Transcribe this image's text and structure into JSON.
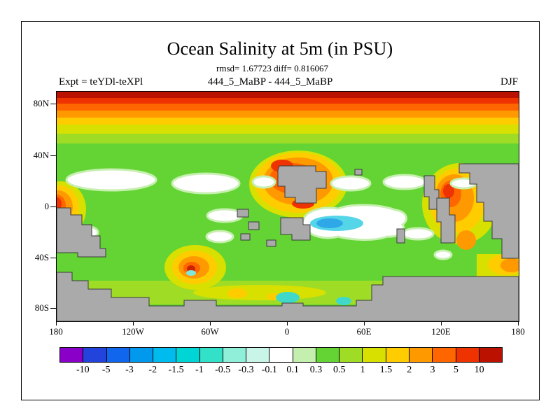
{
  "title": "Ocean Salinity at 5m (in PSU)",
  "stats_line": "rmsd= 1.67723 diff= 0.816067",
  "header": {
    "left": "Expt = teYDl-teXPl",
    "center": "444_5_MaBP - 444_5_MaBP",
    "right": "DJF"
  },
  "axes": {
    "y_ticks": [
      "80N",
      "40N",
      "0",
      "40S",
      "80S"
    ],
    "x_ticks": [
      "180",
      "120W",
      "60W",
      "0",
      "60E",
      "120E",
      "180"
    ]
  },
  "colorbar": {
    "labels": [
      "-10",
      "-5",
      "-3",
      "-2",
      "-1.5",
      "-1",
      "-0.5",
      "-0.3",
      "-0.1",
      "0.1",
      "0.3",
      "0.5",
      "1",
      "1.5",
      "2",
      "3",
      "5",
      "10"
    ],
    "colors": [
      "#8B00C8",
      "#2244DD",
      "#1166EE",
      "#0099EE",
      "#00BBEE",
      "#00D5D5",
      "#33E0C8",
      "#8FEFD8",
      "#C8F5E8",
      "#FFFFFF",
      "#C4EFAE",
      "#63D433",
      "#9FDC26",
      "#D8E000",
      "#FFCC00",
      "#FF9900",
      "#FF6600",
      "#EE3300",
      "#BB1100"
    ]
  },
  "land_color": "#AAAAAA",
  "chart_data": {
    "type": "heatmap",
    "title": "Ocean Salinity at 5m (in PSU)",
    "units": "PSU",
    "statistics": {
      "rmsd": 1.67723,
      "diff": 0.816067
    },
    "experiment": "teYDl-teXPl",
    "fields_compared": "444_5_MaBP - 444_5_MaBP",
    "season": "DJF",
    "x_axis": {
      "ticks": [
        "180",
        "120W",
        "60W",
        "0",
        "60E",
        "120E",
        "180"
      ],
      "range_deg": [
        -180,
        180
      ]
    },
    "y_axis": {
      "ticks": [
        "80N",
        "40N",
        "0",
        "40S",
        "80S"
      ],
      "range_deg": [
        -90,
        90
      ]
    },
    "contour_levels": [
      -10,
      -5,
      -3,
      -2,
      -1.5,
      -1,
      -0.5,
      -0.3,
      -0.1,
      0.1,
      0.3,
      0.5,
      1,
      1.5,
      2,
      3,
      5,
      10
    ],
    "palette": [
      "#8B00C8",
      "#2244DD",
      "#1166EE",
      "#0099EE",
      "#00BBEE",
      "#00D5D5",
      "#33E0C8",
      "#8FEFD8",
      "#C8F5E8",
      "#FFFFFF",
      "#C4EFAE",
      "#63D433",
      "#9FDC26",
      "#D8E000",
      "#FFCC00",
      "#FF9900",
      "#FF6600",
      "#EE3300",
      "#BB1100"
    ],
    "notable_features": [
      "Strong positive band (+2 to >+10 PSU) across all longitudes poleward of about 45N, darkest red at top edge",
      "Background field of roughly +0.3 to +1 PSU (green) over most of the global ocean",
      "Near-zero white patches (-0.1 to +0.1) along the northern subtropics and southern mid-latitudes",
      "Negative anomaly (cyan/blue, -0.5 to -1.5 PSU) in a large white-rimmed region east of the 0 meridian near 10S-25S",
      "Localized positive anomalies (+2 to +5, orange/red) around the gray landmass at 0E/20N, at the west map edge near the equator, southwest mid-ocean near 60W/40S, and near 110E/15S",
      "Land areas masked in gray with stepped blocky coastlines; gray Antarctica band along the bottom"
    ]
  }
}
